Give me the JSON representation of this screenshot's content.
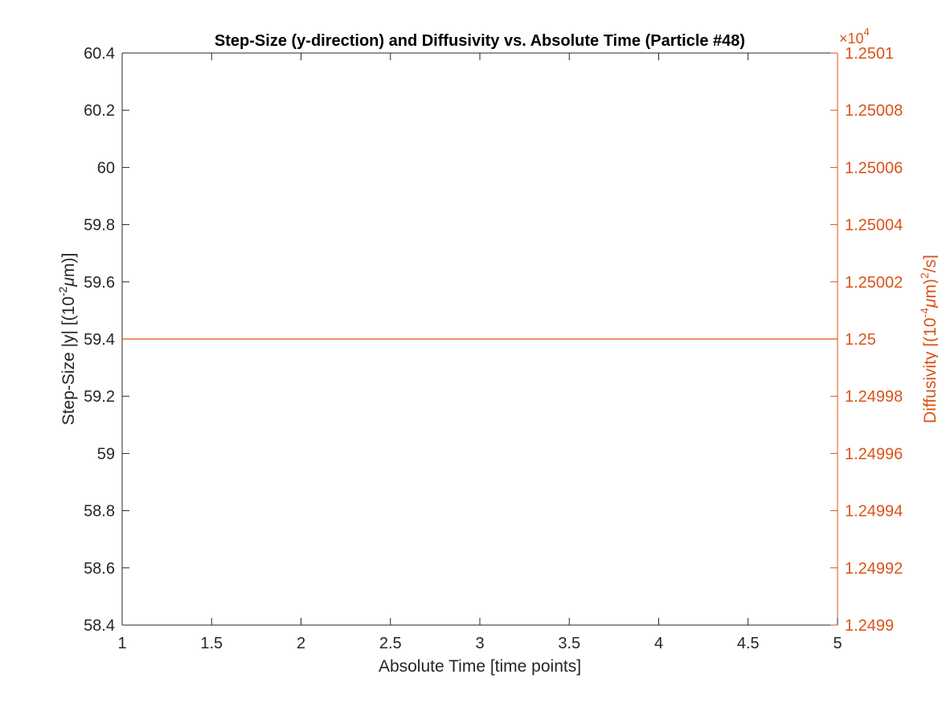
{
  "chart_data": {
    "type": "line",
    "title": "Step-Size (y-direction) and Diffusivity vs. Absolute Time (Particle #48)",
    "xlabel": "Absolute Time [time points]",
    "ylabel_left": {
      "prefix": "Step-Size |y| [(10",
      "sup": "-2",
      "mu": "μ",
      "suffix": "m)]"
    },
    "ylabel_right": {
      "prefix": "Diffusivity [(10",
      "sup1": "-4",
      "mu": "μ",
      "mid": "m)",
      "sup2": "2",
      "suffix": "/s]"
    },
    "xlim": [
      1,
      5
    ],
    "ylim_left": [
      58.4,
      60.4
    ],
    "ylim_right": [
      1.2499,
      1.2501
    ],
    "right_axis_exponent": {
      "times": "×",
      "base": "10",
      "power": "4"
    },
    "xticks": [
      "1",
      "1.5",
      "2",
      "2.5",
      "3",
      "3.5",
      "4",
      "4.5",
      "5"
    ],
    "xtick_values": [
      1,
      1.5,
      2,
      2.5,
      3,
      3.5,
      4,
      4.5,
      5
    ],
    "yticks_left": [
      "60.4",
      "60.2",
      "60",
      "59.8",
      "59.6",
      "59.4",
      "59.2",
      "59",
      "58.8",
      "58.6",
      "58.4"
    ],
    "ytick_values_left": [
      60.4,
      60.2,
      60,
      59.8,
      59.6,
      59.4,
      59.2,
      59,
      58.8,
      58.6,
      58.4
    ],
    "yticks_right": [
      "1.2501",
      "1.25008",
      "1.25006",
      "1.25004",
      "1.25002",
      "1.25",
      "1.24998",
      "1.24996",
      "1.24994",
      "1.24992",
      "1.2499"
    ],
    "ytick_values_right": [
      1.2501,
      1.25008,
      1.25006,
      1.25004,
      1.25002,
      1.25,
      1.24998,
      1.24996,
      1.24994,
      1.24992,
      1.2499
    ],
    "series": [
      {
        "axis": "right",
        "x": [
          1,
          2,
          3,
          4,
          5
        ],
        "y": [
          1.25,
          1.25,
          1.25,
          1.25,
          1.25
        ]
      }
    ],
    "grid": false,
    "colors": {
      "left_axis": "#262626",
      "right_axis": "#D95319",
      "series": "#D95319"
    }
  }
}
